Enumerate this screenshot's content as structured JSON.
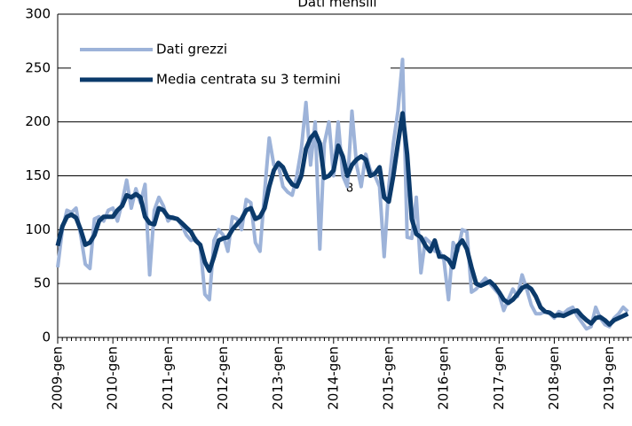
{
  "chart_data": {
    "type": "line",
    "title": "Dati mensili",
    "annotation": "8",
    "categories": [
      "2009-gen",
      null,
      null,
      null,
      null,
      null,
      null,
      null,
      null,
      null,
      null,
      null,
      "2010-gen",
      null,
      null,
      null,
      null,
      null,
      null,
      null,
      null,
      null,
      null,
      null,
      "2011-gen",
      null,
      null,
      null,
      null,
      null,
      null,
      null,
      null,
      null,
      null,
      null,
      "2012-gen",
      null,
      null,
      null,
      null,
      null,
      null,
      null,
      null,
      null,
      null,
      null,
      "2013-gen",
      null,
      null,
      null,
      null,
      null,
      null,
      null,
      null,
      null,
      null,
      null,
      "2014-gen",
      null,
      null,
      null,
      null,
      null,
      null,
      null,
      null,
      null,
      null,
      null,
      "2015-gen",
      null,
      null,
      null,
      null,
      null,
      null,
      null,
      null,
      null,
      null,
      null,
      "2016-gen",
      null,
      null,
      null,
      null,
      null,
      null,
      null,
      null,
      null,
      null,
      null,
      "2017-gen",
      null,
      null,
      null,
      null,
      null,
      null,
      null,
      null,
      null,
      null,
      null,
      "2018-gen",
      null,
      null,
      null,
      null,
      null,
      null,
      null,
      null,
      null,
      null,
      null,
      "2019-gen",
      null,
      null,
      null,
      null
    ],
    "series": [
      {
        "name": "Dati grezzi",
        "color": "#9db3d9",
        "width": 4,
        "values": [
          65,
          100,
          118,
          116,
          120,
          95,
          68,
          64,
          110,
          112,
          108,
          118,
          120,
          108,
          125,
          146,
          120,
          138,
          125,
          142,
          58,
          118,
          130,
          122,
          108,
          112,
          110,
          104,
          95,
          90,
          92,
          85,
          40,
          35,
          90,
          100,
          95,
          80,
          112,
          110,
          100,
          128,
          125,
          88,
          80,
          135,
          185,
          160,
          160,
          140,
          135,
          132,
          150,
          175,
          218,
          160,
          200,
          82,
          180,
          200,
          150,
          200,
          150,
          140,
          210,
          160,
          140,
          170,
          155,
          150,
          140,
          75,
          140,
          180,
          210,
          258,
          93,
          92,
          130,
          60,
          92,
          88,
          80,
          80,
          72,
          35,
          88,
          80,
          100,
          98,
          42,
          45,
          50,
          55,
          50,
          45,
          40,
          25,
          35,
          45,
          38,
          58,
          45,
          30,
          22,
          22,
          24,
          22,
          18,
          24,
          22,
          26,
          28,
          20,
          14,
          8,
          10,
          28,
          18,
          12,
          10,
          18,
          22,
          28,
          24
        ]
      },
      {
        "name": "Media centrata su 3 termini",
        "color": "#0b3a6b",
        "width": 5,
        "values": [
          85,
          103,
          112,
          114,
          111,
          100,
          86,
          88,
          95,
          108,
          112,
          112,
          112,
          118,
          122,
          132,
          130,
          133,
          130,
          112,
          106,
          105,
          120,
          118,
          112,
          111,
          110,
          106,
          102,
          98,
          90,
          86,
          70,
          62,
          75,
          90,
          92,
          93,
          100,
          105,
          110,
          118,
          120,
          110,
          112,
          120,
          140,
          155,
          162,
          158,
          148,
          142,
          140,
          150,
          175,
          185,
          190,
          180,
          148,
          150,
          155,
          178,
          168,
          150,
          160,
          165,
          168,
          165,
          150,
          152,
          158,
          130,
          126,
          150,
          180,
          208,
          170,
          110,
          96,
          93,
          85,
          80,
          90,
          75,
          75,
          72,
          65,
          85,
          90,
          82,
          65,
          50,
          48,
          50,
          52,
          48,
          42,
          35,
          32,
          35,
          40,
          46,
          48,
          45,
          38,
          28,
          24,
          23,
          20,
          21,
          20,
          22,
          24,
          25,
          20,
          16,
          13,
          18,
          19,
          16,
          12,
          16,
          18,
          20,
          22
        ]
      }
    ],
    "ylim": [
      0,
      300
    ],
    "yticks": [
      0,
      50,
      100,
      150,
      200,
      250,
      300
    ],
    "grid": true,
    "legend": "upper left"
  }
}
